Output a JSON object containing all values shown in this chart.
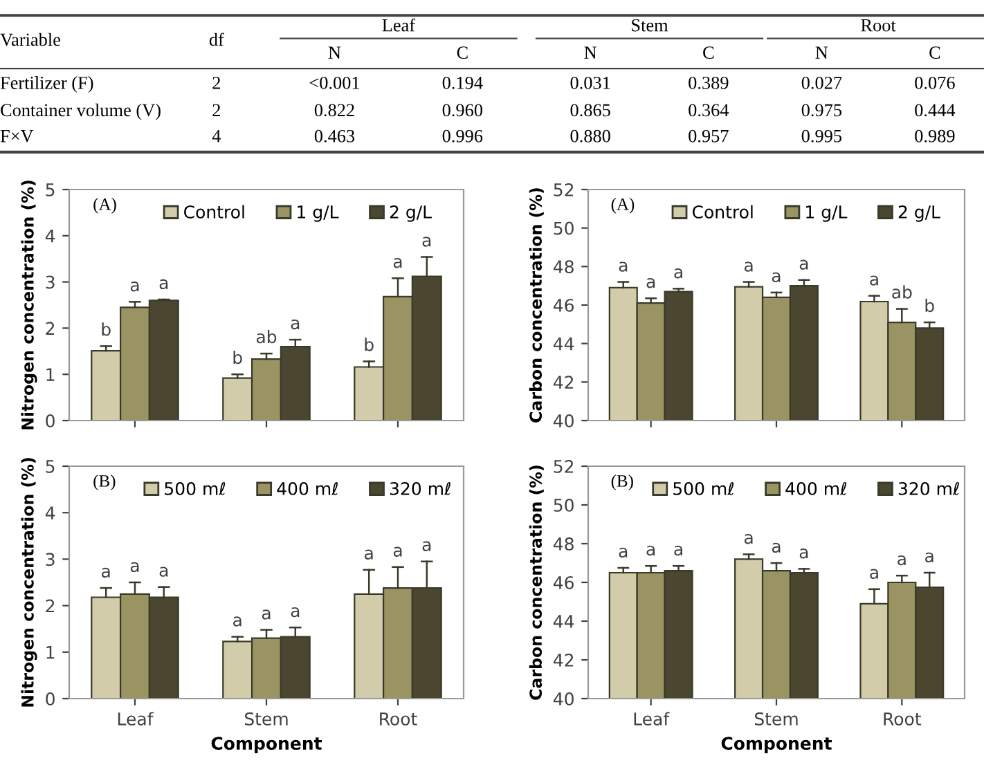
{
  "chart_data": [
    {
      "type": "other",
      "categories": [
        "Variable",
        "df",
        "N",
        "C",
        "N",
        "C",
        "N",
        "C"
      ],
      "y_categories": [
        "Fertilizer (F)",
        "Container volume (V)",
        "F×V"
      ],
      "cell_labels": [
        [
          "2",
          "<0.001",
          "0.194",
          "0.031",
          "0.389",
          "0.027",
          "0.076"
        ],
        [
          "2",
          "0.822",
          "0.960",
          "0.865",
          "0.364",
          "0.975",
          "0.444"
        ],
        [
          "4",
          "0.463",
          "0.996",
          "0.880",
          "0.957",
          "0.995",
          "0.989"
        ]
      ],
      "annotations": [
        "Leaf",
        "Stem",
        "Root"
      ]
    },
    {
      "type": "bar",
      "categories": [
        null,
        null,
        null
      ],
      "ylabel": "Nitrogen concentration (%)",
      "ylim": [
        0,
        5
      ],
      "yticks": [
        0,
        1,
        2,
        3,
        4,
        5
      ],
      "tick_labels": "y",
      "legend": "top",
      "annotations": [
        "(A)"
      ],
      "series": [
        {
          "name": "Control",
          "color": "#d2ccaa",
          "values": [
            1.51,
            0.92,
            1.16
          ],
          "errors": [
            [
              1.51,
              1.61
            ],
            [
              0.92,
              1.0
            ],
            [
              1.16,
              1.28
            ]
          ],
          "value_labels": [
            "b",
            "b",
            "b"
          ]
        },
        {
          "name": "1 g/L",
          "color": "#9a9462",
          "values": [
            2.45,
            1.33,
            2.68
          ],
          "errors": [
            [
              2.45,
              2.57
            ],
            [
              1.33,
              1.45
            ],
            [
              2.68,
              3.08
            ]
          ],
          "value_labels": [
            "a",
            "ab",
            "a"
          ]
        },
        {
          "name": "2 g/L",
          "color": "#4a4630",
          "values": [
            2.6,
            1.6,
            3.12
          ],
          "errors": [
            [
              2.6,
              2.62
            ],
            [
              1.6,
              1.75
            ],
            [
              3.12,
              3.54
            ]
          ],
          "value_labels": [
            "a",
            "a",
            "a"
          ]
        }
      ]
    },
    {
      "type": "bar",
      "categories": [
        null,
        null,
        null
      ],
      "ylabel": "Carbon concentration (%)",
      "ylim": [
        40,
        52
      ],
      "yticks": [
        40,
        42,
        44,
        46,
        48,
        50,
        52
      ],
      "tick_labels": "y",
      "legend": "top",
      "annotations": [
        "(A)"
      ],
      "series": [
        {
          "name": "Control",
          "color": "#d2ccaa",
          "values": [
            46.9,
            46.95,
            46.18
          ],
          "errors": [
            [
              46.9,
              47.2
            ],
            [
              46.95,
              47.2
            ],
            [
              46.18,
              46.48
            ]
          ],
          "value_labels": [
            "a",
            "a",
            "a"
          ]
        },
        {
          "name": "1 g/L",
          "color": "#9a9462",
          "values": [
            46.1,
            46.4,
            45.1
          ],
          "errors": [
            [
              46.1,
              46.35
            ],
            [
              46.4,
              46.65
            ],
            [
              45.1,
              45.8
            ]
          ],
          "value_labels": [
            "a",
            "a",
            "ab"
          ]
        },
        {
          "name": "2 g/L",
          "color": "#4a4630",
          "values": [
            46.7,
            47.0,
            44.8
          ],
          "errors": [
            [
              46.7,
              46.85
            ],
            [
              47.0,
              47.3
            ],
            [
              44.8,
              45.1
            ]
          ],
          "value_labels": [
            "a",
            "a",
            "b"
          ]
        }
      ]
    },
    {
      "type": "bar",
      "categories": [
        "Leaf",
        "Stem",
        "Root"
      ],
      "xlabel": "Component",
      "ylabel": "Nitrogen concentration (%)",
      "ylim": [
        0,
        5
      ],
      "yticks": [
        0,
        1,
        2,
        3,
        4,
        5
      ],
      "legend": "top",
      "annotations": [
        "(B)"
      ],
      "series": [
        {
          "name": "500 mℓ",
          "color": "#d2ccaa",
          "values": [
            2.18,
            1.23,
            2.25
          ],
          "errors": [
            [
              2.18,
              2.38
            ],
            [
              1.23,
              1.33
            ],
            [
              2.25,
              2.77
            ]
          ],
          "value_labels": [
            "a",
            "a",
            "a"
          ]
        },
        {
          "name": "400 mℓ",
          "color": "#9a9462",
          "values": [
            2.25,
            1.3,
            2.38
          ],
          "errors": [
            [
              2.25,
              2.5
            ],
            [
              1.3,
              1.48
            ],
            [
              2.38,
              2.83
            ]
          ],
          "value_labels": [
            "a",
            "a",
            "a"
          ]
        },
        {
          "name": "320 mℓ",
          "color": "#4a4630",
          "values": [
            2.18,
            1.33,
            2.38
          ],
          "errors": [
            [
              2.18,
              2.4
            ],
            [
              1.33,
              1.53
            ],
            [
              2.38,
              2.95
            ]
          ],
          "value_labels": [
            "a",
            "a",
            "a"
          ]
        }
      ]
    },
    {
      "type": "bar",
      "categories": [
        "Leaf",
        "Stem",
        "Root"
      ],
      "xlabel": "Component",
      "ylabel": "Carbon concentration (%)",
      "ylim": [
        40,
        52
      ],
      "yticks": [
        40,
        42,
        44,
        46,
        48,
        50,
        52
      ],
      "legend": "top",
      "annotations": [
        "(B)"
      ],
      "series": [
        {
          "name": "500 mℓ",
          "color": "#d2ccaa",
          "values": [
            46.5,
            47.2,
            44.9
          ],
          "errors": [
            [
              46.5,
              46.75
            ],
            [
              47.2,
              47.45
            ],
            [
              44.9,
              45.65
            ]
          ],
          "value_labels": [
            "a",
            "a",
            "a"
          ]
        },
        {
          "name": "400 mℓ",
          "color": "#9a9462",
          "values": [
            46.5,
            46.6,
            46.0
          ],
          "errors": [
            [
              46.5,
              46.85
            ],
            [
              46.6,
              47.0
            ],
            [
              46.0,
              46.35
            ]
          ],
          "value_labels": [
            "a",
            "a",
            "a"
          ]
        },
        {
          "name": "320 mℓ",
          "color": "#4a4630",
          "values": [
            46.6,
            46.5,
            45.75
          ],
          "errors": [
            [
              46.6,
              46.85
            ],
            [
              46.5,
              46.7
            ],
            [
              45.75,
              46.5
            ]
          ],
          "value_labels": [
            "a",
            "a",
            "a"
          ]
        }
      ]
    }
  ]
}
